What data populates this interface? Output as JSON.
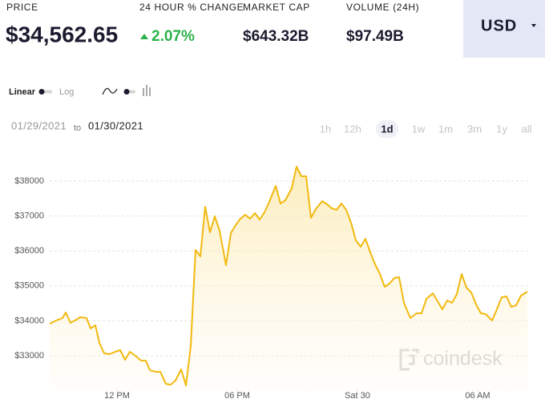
{
  "header": {
    "price_label": "PRICE",
    "price": "$34,562.65",
    "change_label": "24 HOUR % CHANGE",
    "change": "2.07%",
    "market_cap_label": "MARKET CAP",
    "market_cap": "$643.32B",
    "volume_label": "VOLUME (24H)",
    "volume": "$97.49B",
    "currency": "USD"
  },
  "controls": {
    "scale_options": [
      "Linear",
      "Log"
    ],
    "date_from": "01/29/2021",
    "date_separator": "to",
    "date_to": "01/30/2021",
    "ranges": [
      "1h",
      "12h",
      "1d",
      "1w",
      "1m",
      "3m",
      "1y",
      "all"
    ],
    "selected_range": "1d"
  },
  "watermark": "coindesk",
  "chart_data": {
    "type": "line",
    "fill": true,
    "color": "#f2b90f",
    "grid": true,
    "x": [
      8.64,
      8.96,
      9.28,
      9.44,
      9.68,
      9.96,
      10.16,
      10.48,
      10.68,
      10.92,
      11.12,
      11.36,
      11.64,
      11.92,
      12.16,
      12.4,
      12.64,
      12.96,
      13.2,
      13.44,
      13.64,
      13.92,
      14.16,
      14.44,
      14.68,
      14.92,
      15.2,
      15.44,
      15.68,
      15.92,
      16.16,
      16.4,
      16.64,
      16.88,
      17.12,
      17.44,
      17.68,
      17.92,
      18.16,
      18.4,
      18.64,
      18.88,
      19.12,
      19.36,
      19.6,
      19.92,
      20.16,
      20.4,
      20.72,
      20.96,
      21.2,
      21.44,
      21.68,
      21.92,
      22.24,
      22.48,
      22.72,
      22.96,
      23.2,
      23.44,
      23.68,
      23.92,
      24.16,
      24.4,
      24.64,
      24.88,
      25.12,
      25.36,
      25.6,
      25.84,
      26.08,
      26.32,
      26.64,
      26.96,
      27.2,
      27.44,
      27.76,
      28,
      28.24,
      28.48,
      28.72,
      28.96,
      29.2,
      29.44,
      29.68,
      29.92,
      30.16,
      30.4,
      30.72,
      30.96,
      31.2,
      31.44,
      31.68,
      31.92,
      32.16,
      32.48
    ],
    "values": [
      33917,
      34008,
      34077,
      34238,
      33940,
      34031,
      34100,
      34077,
      33779,
      33871,
      33366,
      33068,
      33045,
      33114,
      33160,
      32884,
      33114,
      32976,
      32861,
      32861,
      32586,
      32540,
      32540,
      32196,
      32173,
      32288,
      32609,
      32150,
      33274,
      36027,
      35844,
      37266,
      36532,
      36991,
      36578,
      35591,
      36509,
      36738,
      36922,
      37037,
      36922,
      37082,
      36899,
      37105,
      37404,
      37862,
      37358,
      37449,
      37794,
      38413,
      38138,
      38138,
      36945,
      37197,
      37426,
      37335,
      37220,
      37174,
      37358,
      37174,
      36807,
      36302,
      36119,
      36348,
      35958,
      35614,
      35339,
      34972,
      35064,
      35224,
      35247,
      34513,
      34077,
      34215,
      34215,
      34628,
      34788,
      34559,
      34330,
      34582,
      34513,
      34765,
      35339,
      34949,
      34811,
      34467,
      34215,
      34192,
      34008,
      34330,
      34674,
      34697,
      34398,
      34444,
      34720,
      34834
    ],
    "xlim": [
      8.64,
      32.48
    ],
    "xticks": [
      {
        "value": 12,
        "label": "12 PM"
      },
      {
        "value": 18,
        "label": "06 PM"
      },
      {
        "value": 24,
        "label": "Sat 30"
      },
      {
        "value": 30,
        "label": "06 AM"
      }
    ],
    "ylim": [
      32000,
      38700
    ],
    "yticks": [
      {
        "value": 33000,
        "label": "$33000"
      },
      {
        "value": 34000,
        "label": "$34000"
      },
      {
        "value": 35000,
        "label": "$35000"
      },
      {
        "value": 36000,
        "label": "$36000"
      },
      {
        "value": 37000,
        "label": "$37000"
      },
      {
        "value": 38000,
        "label": "$38000"
      }
    ]
  }
}
